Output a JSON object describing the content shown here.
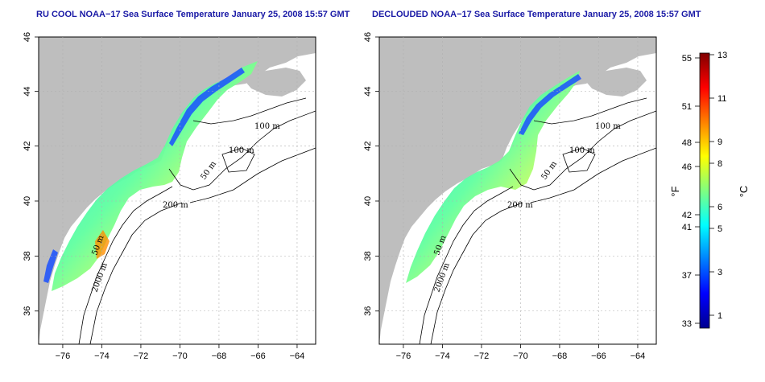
{
  "maps": [
    {
      "title": "RU COOL NOAA−17 Sea Surface Temperature January 25, 2008 15:57 GMT",
      "x_ticks": [
        "−76",
        "−74",
        "−72",
        "−70",
        "−68",
        "−66",
        "−64"
      ],
      "y_ticks": [
        "46",
        "44",
        "42",
        "40",
        "38",
        "36"
      ],
      "contours": [
        "100 m",
        "100 m",
        "50 m",
        "200 m",
        "50 m",
        "2000 m"
      ]
    },
    {
      "title": "DECLOUDED NOAA−17 Sea Surface Temperature January 25, 2008 15:57 GMT",
      "x_ticks": [
        "−76",
        "−74",
        "−72",
        "−70",
        "−68",
        "−66",
        "−64"
      ],
      "y_ticks": [
        "46",
        "44",
        "42",
        "40",
        "38",
        "36"
      ],
      "contours": [
        "100 m",
        "100 m",
        "50 m",
        "200 m",
        "50 m",
        "2000 m"
      ]
    }
  ],
  "colorbar": {
    "fahrenheit_ticks": [
      "55",
      "51",
      "48",
      "46",
      "42",
      "41",
      "37",
      "33"
    ],
    "celsius_ticks": [
      "13",
      "11",
      "9",
      "8",
      "6",
      "5",
      "3",
      "1"
    ],
    "f_label": "°F",
    "c_label": "°C",
    "colors": [
      "#00008f",
      "#0000ff",
      "#0080ff",
      "#00ffff",
      "#80ff80",
      "#ffff00",
      "#ff8000",
      "#ff0000",
      "#800000"
    ]
  },
  "colors": {
    "land": "#bebebe",
    "ocean": "#ffffff",
    "title": "#1a1aa6",
    "grid": "#b0b0b0"
  }
}
